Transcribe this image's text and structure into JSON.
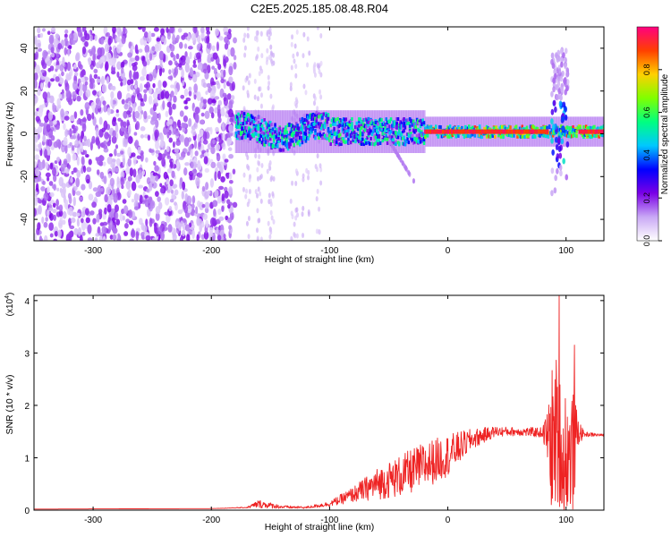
{
  "title": "C2E5.2025.185.08.48.R04",
  "chart_data": [
    {
      "type": "heatmap",
      "title": "C2E5.2025.185.08.48.R04",
      "xlabel": "Height of straight line (km)",
      "ylabel": "Frequency (Hz)",
      "xlim": [
        -350,
        132
      ],
      "ylim": [
        -50,
        50
      ],
      "x_ticks": [
        -300,
        -200,
        -100,
        0,
        100
      ],
      "y_ticks": [
        -40,
        -20,
        0,
        20,
        40
      ],
      "colorbar": {
        "label": "Normalized spectral amplitude",
        "range": [
          0,
          1
        ],
        "ticks": [
          "0.0",
          "0.2",
          "0.4",
          "0.6",
          "0.8"
        ],
        "colors": [
          "#ffffff",
          "#c9a8f5",
          "#7a00e6",
          "#0000ff",
          "#00c8ff",
          "#00ff80",
          "#80ff00",
          "#ffd000",
          "#ff4000",
          "#ff0080"
        ]
      },
      "grid": false,
      "features": {
        "noise_region_x": [
          -350,
          -180
        ],
        "main_band_center_y": 1,
        "spike_x": 92
      }
    },
    {
      "type": "line",
      "xlabel": "Height of straight line (km)",
      "ylabel": "SNR (10 * v/v)",
      "y_exponent": "(x10",
      "y_exponent_power": "4",
      "y_exponent_close": ")",
      "xlim": [
        -350,
        132
      ],
      "ylim": [
        0,
        4.1
      ],
      "x_ticks": [
        -300,
        -200,
        -100,
        0,
        100
      ],
      "y_ticks": [
        0,
        1,
        2,
        3,
        4
      ],
      "color": "#ee2222",
      "grid": false,
      "series": [
        {
          "envelope_x": [
            -350,
            -200,
            -170,
            -160,
            -140,
            -120,
            -100,
            -80,
            -60,
            -40,
            -20,
            0,
            20,
            40,
            60,
            80,
            85,
            90,
            95,
            100,
            105,
            110,
            115,
            132
          ],
          "envelope_y": [
            0.02,
            0.03,
            0.05,
            0.12,
            0.06,
            0.05,
            0.12,
            0.3,
            0.5,
            0.65,
            0.85,
            1.05,
            1.35,
            1.5,
            1.5,
            1.48,
            1.4,
            1.2,
            1.0,
            0.7,
            1.0,
            1.5,
            1.45,
            1.43
          ],
          "noise_y": [
            0.0,
            0.0,
            0.01,
            0.08,
            0.03,
            0.02,
            0.05,
            0.15,
            0.3,
            0.4,
            0.45,
            0.4,
            0.2,
            0.1,
            0.08,
            0.1,
            0.6,
            2.0,
            1.6,
            1.8,
            1.4,
            0.3,
            0.05,
            0.02
          ]
        }
      ],
      "peaks": [
        {
          "x": 94,
          "y": 4.1
        },
        {
          "x": 107,
          "y": 3.15
        }
      ]
    }
  ]
}
